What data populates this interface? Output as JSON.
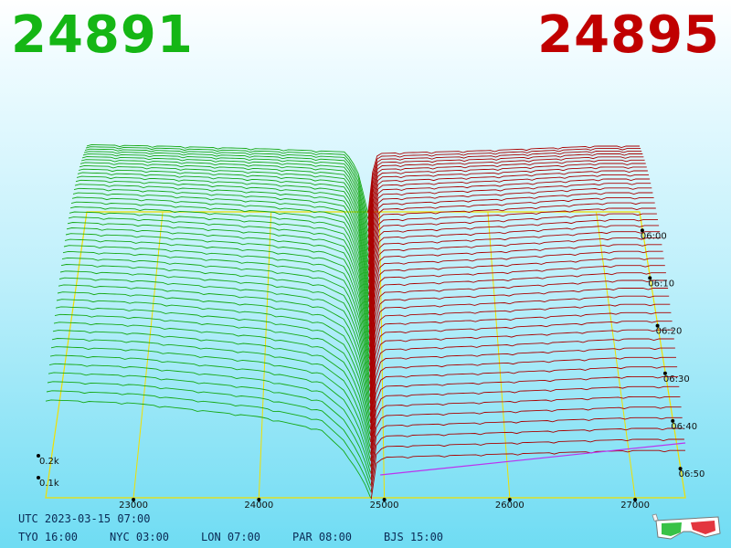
{
  "header": {
    "bid_price": "24891",
    "ask_price": "24895",
    "bid_color": "#15b615",
    "ask_color": "#c00000"
  },
  "footer": {
    "utc_label": "UTC 2023-03-15 07:00",
    "cities": [
      {
        "label": "TYO 16:00"
      },
      {
        "label": "NYC 03:00"
      },
      {
        "label": "LON 07:00"
      },
      {
        "label": "PAR 08:00"
      },
      {
        "label": "BJS 15:00"
      }
    ],
    "glasses_icon": "3d-glasses-icon"
  },
  "chart_data": {
    "type": "3d-depth-waterfall",
    "title": "",
    "x_axis": {
      "ticks": [
        23000,
        24000,
        25000,
        26000,
        27000
      ],
      "range": [
        22300,
        27400
      ]
    },
    "time_axis": {
      "ticks": [
        "06:00",
        "06:10",
        "06:20",
        "06:30",
        "06:40",
        "06:50"
      ]
    },
    "volume_axis": {
      "ticks": [
        "0.1k",
        "0.2k"
      ]
    },
    "bid": {
      "color": "#15a815",
      "depth_front": [
        [
          22300,
          0.29
        ],
        [
          23000,
          0.28
        ],
        [
          24000,
          0.24
        ],
        [
          24500,
          0.2
        ],
        [
          24700,
          0.13
        ],
        [
          24800,
          0.07
        ],
        [
          24860,
          0.03
        ],
        [
          24891,
          0.0
        ]
      ],
      "depth_back": [
        [
          22300,
          0.92
        ],
        [
          23000,
          0.9
        ],
        [
          24000,
          0.86
        ],
        [
          24700,
          0.82
        ],
        [
          24800,
          0.55
        ],
        [
          24860,
          0.2
        ],
        [
          24891,
          0.0
        ]
      ]
    },
    "ask": {
      "color": "#aa0000",
      "depth_front": [
        [
          24895,
          0.0
        ],
        [
          24930,
          0.1
        ],
        [
          25000,
          0.12
        ],
        [
          26000,
          0.13
        ],
        [
          27000,
          0.14
        ],
        [
          27400,
          0.14
        ]
      ],
      "depth_back": [
        [
          24895,
          0.0
        ],
        [
          24950,
          0.72
        ],
        [
          25000,
          0.8
        ],
        [
          26000,
          0.84
        ],
        [
          27000,
          0.9
        ],
        [
          27400,
          0.9
        ]
      ]
    },
    "layers": 46
  }
}
